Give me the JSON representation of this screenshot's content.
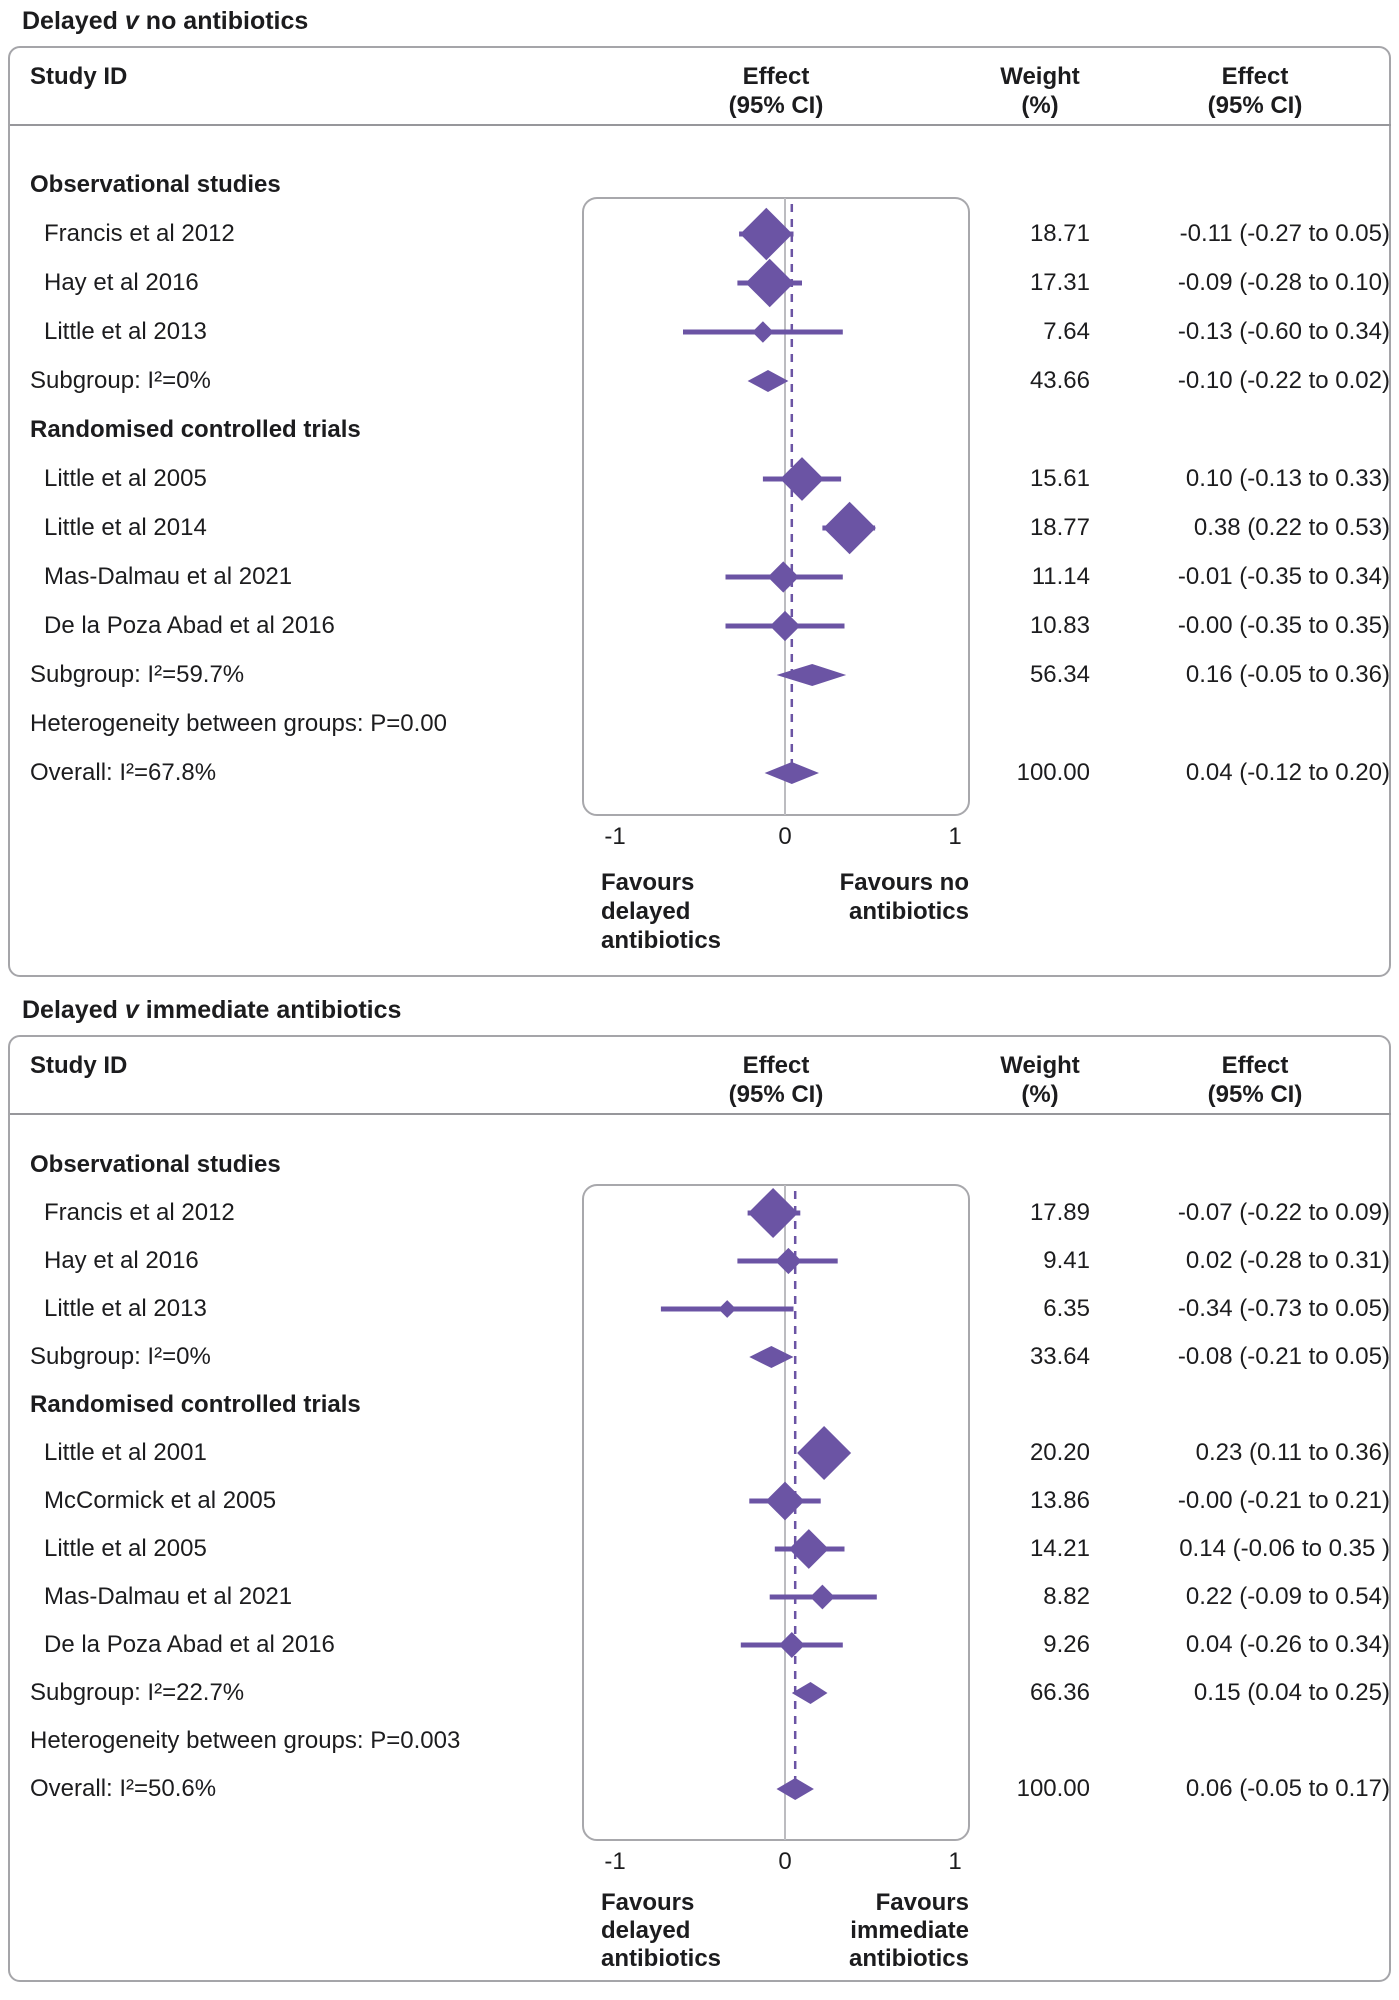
{
  "chart_data": {
    "type": "forest",
    "colors": {
      "accent": "#6b54a4",
      "frame": "#a8a8ac",
      "zero_line": "#bcbcc0",
      "divider": "#97979b",
      "text": "#1c1c1e"
    },
    "panels": [
      {
        "title": {
          "pre": "Delayed",
          "vs": "v",
          "post": "no antibiotics"
        },
        "columns": {
          "study": "Study ID",
          "effect_plot": [
            "Effect",
            "(95% CI)"
          ],
          "weight": [
            "Weight",
            "(%)"
          ],
          "effect_text": [
            "Effect",
            "(95% CI)"
          ]
        },
        "axis": {
          "min": -1,
          "max": 1,
          "ticks": [
            "-1",
            "0",
            "1"
          ],
          "favours_left": [
            "Favours",
            "delayed",
            "antibiotics"
          ],
          "favours_right": [
            "Favours no",
            "antibiotics"
          ]
        },
        "overall_est": 0.04,
        "rows": [
          {
            "type": "heading",
            "label": "Observational studies"
          },
          {
            "type": "study",
            "label": "Francis et al 2012",
            "weight": "18.71",
            "effect": "-0.11 (-0.27 to 0.05)",
            "est": -0.11,
            "lo": -0.27,
            "hi": 0.05
          },
          {
            "type": "study",
            "label": "Hay et al 2016",
            "weight": "17.31",
            "effect": "-0.09 (-0.28 to 0.10)",
            "est": -0.09,
            "lo": -0.28,
            "hi": 0.1
          },
          {
            "type": "study",
            "label": "Little et al 2013",
            "weight": "7.64",
            "effect": "-0.13 (-0.60 to 0.34)",
            "est": -0.13,
            "lo": -0.6,
            "hi": 0.34
          },
          {
            "type": "pooled",
            "label": "Subgroup: I²=0%",
            "weight": "43.66",
            "effect": "-0.10 (-0.22 to 0.02)",
            "est": -0.1,
            "lo": -0.22,
            "hi": 0.02
          },
          {
            "type": "heading",
            "label": "Randomised controlled trials"
          },
          {
            "type": "study",
            "label": "Little et al 2005",
            "weight": "15.61",
            "effect": "0.10 (-0.13 to 0.33)",
            "est": 0.1,
            "lo": -0.13,
            "hi": 0.33
          },
          {
            "type": "study",
            "label": "Little et al 2014",
            "weight": "18.77",
            "effect": "0.38 (0.22 to 0.53)",
            "est": 0.38,
            "lo": 0.22,
            "hi": 0.53
          },
          {
            "type": "study",
            "label": "Mas-Dalmau et al 2021",
            "weight": "11.14",
            "effect": "-0.01 (-0.35 to 0.34)",
            "est": -0.01,
            "lo": -0.35,
            "hi": 0.34
          },
          {
            "type": "study",
            "label": "De la Poza Abad et al 2016",
            "weight": "10.83",
            "effect": "-0.00 (-0.35 to 0.35)",
            "est": 0.0,
            "lo": -0.35,
            "hi": 0.35
          },
          {
            "type": "pooled",
            "label": "Subgroup: I²=59.7%",
            "weight": "56.34",
            "effect": "0.16 (-0.05 to 0.36)",
            "est": 0.16,
            "lo": -0.05,
            "hi": 0.36
          },
          {
            "type": "note",
            "label": "Heterogeneity between groups: P=0.00"
          },
          {
            "type": "pooled",
            "overall": true,
            "label": "Overall: I²=67.8%",
            "weight": "100.00",
            "effect": "0.04 (-0.12 to 0.20)",
            "est": 0.04,
            "lo": -0.12,
            "hi": 0.2
          }
        ]
      },
      {
        "title": {
          "pre": "Delayed",
          "vs": "v",
          "post": "immediate antibiotics"
        },
        "columns": {
          "study": "Study ID",
          "effect_plot": [
            "Effect",
            "(95% CI)"
          ],
          "weight": [
            "Weight",
            "(%)"
          ],
          "effect_text": [
            "Effect",
            "(95% CI)"
          ]
        },
        "axis": {
          "min": -1,
          "max": 1,
          "ticks": [
            "-1",
            "0",
            "1"
          ],
          "favours_left": [
            "Favours",
            "delayed",
            "antibiotics"
          ],
          "favours_right": [
            "Favours",
            "immediate",
            "antibiotics"
          ]
        },
        "overall_est": 0.06,
        "rows": [
          {
            "type": "heading",
            "label": "Observational studies"
          },
          {
            "type": "study",
            "label": "Francis et al 2012",
            "weight": "17.89",
            "effect": "-0.07 (-0.22 to 0.09)",
            "est": -0.07,
            "lo": -0.22,
            "hi": 0.09
          },
          {
            "type": "study",
            "label": "Hay et al 2016",
            "weight": "9.41",
            "effect": "0.02 (-0.28 to 0.31)",
            "est": 0.02,
            "lo": -0.28,
            "hi": 0.31
          },
          {
            "type": "study",
            "label": "Little et al 2013",
            "weight": "6.35",
            "effect": "-0.34 (-0.73 to 0.05)",
            "est": -0.34,
            "lo": -0.73,
            "hi": 0.05
          },
          {
            "type": "pooled",
            "label": "Subgroup: I²=0%",
            "weight": "33.64",
            "effect": "-0.08 (-0.21 to 0.05)",
            "est": -0.08,
            "lo": -0.21,
            "hi": 0.05
          },
          {
            "type": "heading",
            "label": "Randomised controlled trials"
          },
          {
            "type": "study",
            "label": "Little et al 2001",
            "weight": "20.20",
            "effect": "0.23 (0.11 to 0.36)",
            "est": 0.23,
            "lo": 0.11,
            "hi": 0.36
          },
          {
            "type": "study",
            "label": "McCormick et al 2005",
            "weight": "13.86",
            "effect": "-0.00 (-0.21 to 0.21)",
            "est": 0.0,
            "lo": -0.21,
            "hi": 0.21
          },
          {
            "type": "study",
            "label": "Little et al 2005",
            "weight": "14.21",
            "effect": "0.14 (-0.06 to 0.35 )",
            "est": 0.14,
            "lo": -0.06,
            "hi": 0.35
          },
          {
            "type": "study",
            "label": "Mas-Dalmau et al 2021",
            "weight": "8.82",
            "effect": "0.22 (-0.09 to 0.54)",
            "est": 0.22,
            "lo": -0.09,
            "hi": 0.54
          },
          {
            "type": "study",
            "label": "De la Poza Abad et al 2016",
            "weight": "9.26",
            "effect": "0.04 (-0.26 to 0.34)",
            "est": 0.04,
            "lo": -0.26,
            "hi": 0.34
          },
          {
            "type": "pooled",
            "label": "Subgroup: I²=22.7%",
            "weight": "66.36",
            "effect": "0.15 (0.04 to 0.25)",
            "est": 0.15,
            "lo": 0.04,
            "hi": 0.25
          },
          {
            "type": "note",
            "label": "Heterogeneity between groups: P=0.003"
          },
          {
            "type": "pooled",
            "overall": true,
            "label": "Overall: I²=50.6%",
            "weight": "100.00",
            "effect": "0.06 (-0.05 to 0.17)",
            "est": 0.06,
            "lo": -0.05,
            "hi": 0.17
          }
        ]
      }
    ]
  }
}
